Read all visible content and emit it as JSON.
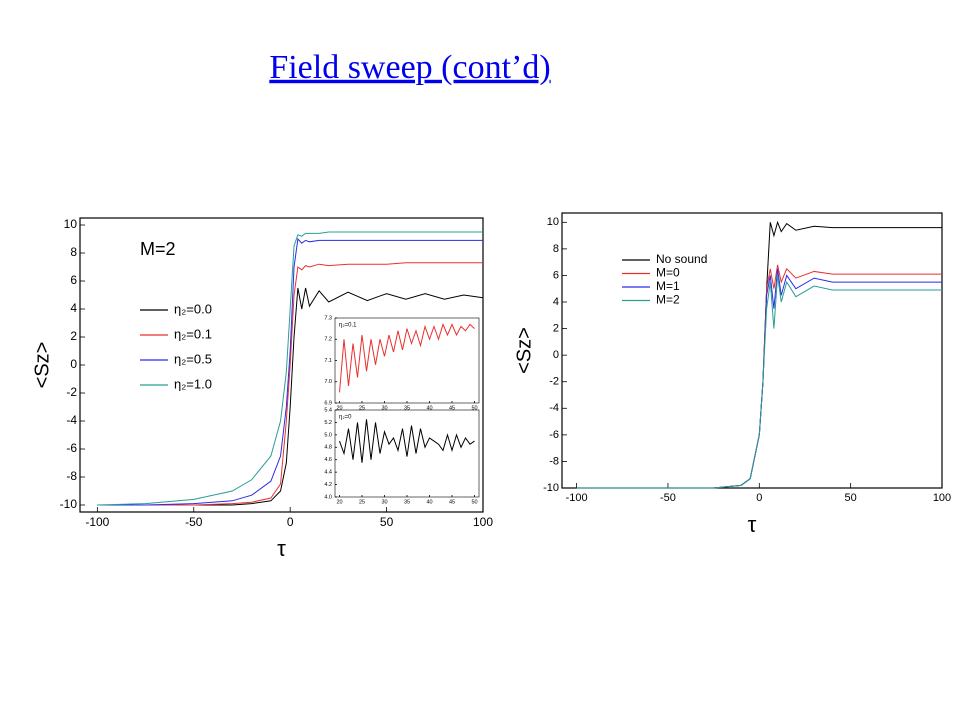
{
  "header": {
    "title": "Field sweep (cont’d)"
  },
  "chart_data": [
    {
      "type": "line",
      "xlabel": "τ",
      "ylabel": "<Sz>",
      "annotation": "M=2",
      "legend": "center left",
      "grid": false,
      "xlim": [
        -109,
        100
      ],
      "ylim": [
        -10.5,
        10.5
      ],
      "xticks": [
        -100,
        -50,
        0,
        50,
        100
      ],
      "yticks": [
        -10,
        -8,
        -6,
        -4,
        -2,
        0,
        2,
        4,
        6,
        8,
        10
      ],
      "x": [
        -100,
        -75,
        -50,
        -30,
        -20,
        -10,
        -5,
        -2,
        0,
        2,
        4,
        6,
        8,
        10,
        15,
        20,
        30,
        40,
        50,
        60,
        70,
        80,
        90,
        100
      ],
      "series": [
        {
          "name": "η₂=0.0",
          "color": "#000000",
          "values": [
            -10,
            -10,
            -10,
            -10,
            -9.9,
            -9.7,
            -9,
            -7,
            -3,
            2,
            5.5,
            4,
            5.5,
            4.2,
            5.3,
            4.5,
            5.2,
            4.6,
            5.1,
            4.7,
            5.1,
            4.7,
            5,
            4.8
          ]
        },
        {
          "name": "η₂=0.1",
          "color": "#e8312f",
          "values": [
            -10,
            -10,
            -10,
            -9.9,
            -9.8,
            -9.5,
            -8.5,
            -4,
            0,
            5,
            7,
            6.8,
            7.1,
            7,
            7.2,
            7.1,
            7.2,
            7.2,
            7.2,
            7.3,
            7.3,
            7.3,
            7.3,
            7.3
          ]
        },
        {
          "name": "η₂=0.5",
          "color": "#2b2bea",
          "values": [
            -10,
            -10,
            -9.9,
            -9.7,
            -9.3,
            -8.3,
            -6.5,
            -3,
            1,
            7,
            9,
            8.7,
            8.9,
            8.8,
            8.9,
            8.9,
            8.9,
            8.9,
            8.9,
            8.9,
            8.9,
            8.9,
            8.9,
            8.9
          ]
        },
        {
          "name": "η₂=1.0",
          "color": "#2a9d94",
          "values": [
            -10,
            -9.9,
            -9.6,
            -9,
            -8.2,
            -6.5,
            -4,
            -0.5,
            4,
            8.5,
            9.3,
            9.2,
            9.4,
            9.4,
            9.4,
            9.5,
            9.5,
            9.5,
            9.5,
            9.5,
            9.5,
            9.5,
            9.5,
            9.5
          ]
        }
      ]
    },
    {
      "type": "line",
      "annotation": "η₂=0.1",
      "grid": false,
      "xlim": [
        19,
        51
      ],
      "ylim": [
        6.9,
        7.3
      ],
      "xticks": [
        20,
        25,
        30,
        35,
        40,
        45,
        50
      ],
      "yticks": [
        6.9,
        {
          "value": 7,
          "label": "7.0"
        },
        7.1,
        7.2,
        7.3
      ],
      "x": [
        20,
        21,
        22,
        23,
        24,
        25,
        26,
        27,
        28,
        29,
        30,
        31,
        32,
        33,
        34,
        35,
        36,
        37,
        38,
        39,
        40,
        41,
        42,
        43,
        44,
        45,
        46,
        47,
        48,
        49,
        50
      ],
      "series": [
        {
          "color": "#e8312f",
          "values": [
            6.95,
            7.2,
            6.98,
            7.18,
            7.02,
            7.22,
            7.05,
            7.2,
            7.08,
            7.2,
            7.12,
            7.22,
            7.14,
            7.24,
            7.15,
            7.25,
            7.18,
            7.24,
            7.17,
            7.26,
            7.2,
            7.26,
            7.2,
            7.27,
            7.22,
            7.27,
            7.22,
            7.26,
            7.24,
            7.27,
            7.25
          ]
        }
      ]
    },
    {
      "type": "line",
      "annotation": "η₂=0",
      "grid": false,
      "xlim": [
        19,
        51
      ],
      "ylim": [
        4.0,
        5.4
      ],
      "xticks": [
        20,
        25,
        30,
        35,
        40,
        45,
        50
      ],
      "yticks": [
        {
          "value": 4,
          "label": "4.0"
        },
        4.2,
        4.4,
        4.6,
        4.8,
        {
          "value": 5,
          "label": "5.0"
        },
        5.2,
        5.4
      ],
      "x": [
        20,
        21,
        22,
        23,
        24,
        25,
        26,
        27,
        28,
        29,
        30,
        31,
        32,
        33,
        34,
        35,
        36,
        37,
        38,
        39,
        40,
        41,
        42,
        43,
        44,
        45,
        46,
        47,
        48,
        49,
        50
      ],
      "series": [
        {
          "color": "#000000",
          "values": [
            4.9,
            4.7,
            5.1,
            4.6,
            5.2,
            4.55,
            5.25,
            4.6,
            5.2,
            4.7,
            5.05,
            4.85,
            4.95,
            4.75,
            5.1,
            4.65,
            5.15,
            4.7,
            5.1,
            4.8,
            4.95,
            4.9,
            4.85,
            4.75,
            5.0,
            4.75,
            5.0,
            4.8,
            4.95,
            4.85,
            4.9
          ]
        }
      ]
    },
    {
      "type": "line",
      "xlabel": "τ",
      "ylabel": "<Sz>",
      "legend": "upper left",
      "grid": false,
      "xlim": [
        -108,
        100
      ],
      "ylim": [
        -10,
        10.7
      ],
      "xticks": [
        -100,
        -50,
        0,
        50,
        100
      ],
      "yticks": [
        -10,
        -8,
        -6,
        -4,
        -2,
        0,
        2,
        4,
        6,
        8,
        10
      ],
      "x": [
        -100,
        -50,
        -25,
        -10,
        -5,
        0,
        2,
        4,
        6,
        8,
        10,
        12,
        15,
        20,
        30,
        40,
        60,
        80,
        100
      ],
      "series": [
        {
          "name": "No sound",
          "color": "#000000",
          "values": [
            -10,
            -10,
            -10,
            -9.8,
            -9.3,
            -6,
            -2,
            5,
            10,
            9,
            10,
            9.3,
            9.9,
            9.4,
            9.7,
            9.6,
            9.6,
            9.6,
            9.6
          ]
        },
        {
          "name": "M=0",
          "color": "#e8312f",
          "values": [
            -10,
            -10,
            -10,
            -9.8,
            -9.3,
            -6,
            -2,
            5,
            6.5,
            5,
            6.8,
            5.5,
            6.5,
            5.8,
            6.3,
            6.1,
            6.1,
            6.1,
            6.1
          ]
        },
        {
          "name": "M=1",
          "color": "#2b2bea",
          "values": [
            -10,
            -10,
            -10,
            -9.8,
            -9.3,
            -6,
            -2,
            4.5,
            6,
            3.5,
            6.5,
            4.5,
            6,
            5,
            5.8,
            5.5,
            5.5,
            5.5,
            5.5
          ]
        },
        {
          "name": "M=2",
          "color": "#2a9d94",
          "values": [
            -10,
            -10,
            -10,
            -9.8,
            -9.3,
            -6,
            -2,
            3.5,
            5.5,
            2,
            6,
            4,
            5.5,
            4.4,
            5.2,
            4.9,
            4.9,
            4.9,
            4.9
          ]
        }
      ]
    }
  ]
}
